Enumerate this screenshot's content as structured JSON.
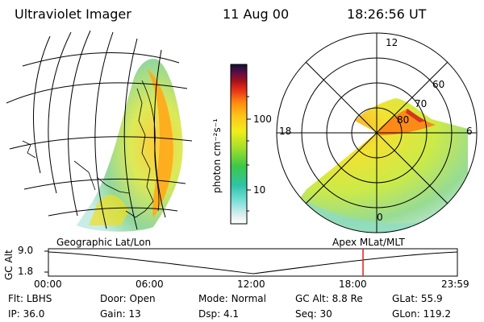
{
  "header": {
    "instrument": "Ultraviolet Imager",
    "date": "11 Aug 00",
    "time": "18:26:56 UT"
  },
  "colorbar": {
    "unit_label": "photon cm⁻²s⁻¹",
    "ticks": [
      "100",
      "10"
    ]
  },
  "polar_plot": {
    "mlt_labels": [
      "12",
      "18",
      "6",
      "0"
    ],
    "lat_labels": [
      "60",
      "70",
      "80"
    ]
  },
  "map_labels": {
    "left": "Geographic Lat/Lon",
    "right": "Apex MLat/MLT"
  },
  "orbit": {
    "ylabel": "GC Alt",
    "y_ticks": [
      "9.0",
      "1.8"
    ],
    "x_ticks": [
      "00:00",
      "06:00",
      "12:00",
      "18:00",
      "23:59"
    ],
    "current_time_hours": 18.45
  },
  "info": {
    "row1": [
      {
        "label": "Flt:",
        "value": "LBHS"
      },
      {
        "label": "Door:",
        "value": "Open"
      },
      {
        "label": "Mode:",
        "value": "Normal"
      },
      {
        "label": "GC Alt:",
        "value": "8.8 Re"
      },
      {
        "label": "GLat:",
        "value": "55.9"
      }
    ],
    "row2": [
      {
        "label": "IP:",
        "value": "36.0"
      },
      {
        "label": "Gain:",
        "value": "13"
      },
      {
        "label": "Dsp:",
        "value": "4.1"
      },
      {
        "label": "Seq:",
        "value": "30"
      },
      {
        "label": "GLon:",
        "value": "119.2"
      }
    ]
  },
  "colors": {
    "aurora_low": "#5fd7c8",
    "aurora_mid": "#a8e03c",
    "aurora_high": "#ffc21a",
    "aurora_peak": "#d2361c",
    "marker": "#e02020"
  }
}
